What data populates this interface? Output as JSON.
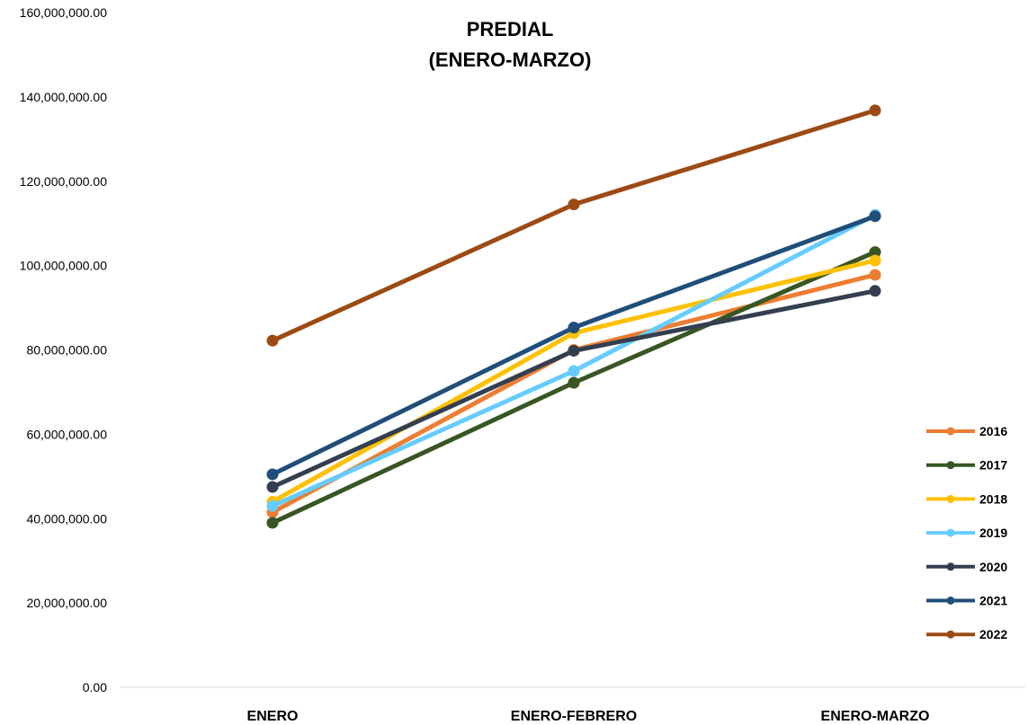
{
  "chart_data": {
    "type": "line",
    "title": "PREDIAL",
    "subtitle": "(ENERO-MARZO)",
    "xlabel": "",
    "ylabel": "",
    "categories": [
      "ENERO",
      "ENERO-FEBRERO",
      "ENERO-MARZO"
    ],
    "ylim": [
      0,
      160000000
    ],
    "yticks": [
      0,
      20000000,
      40000000,
      60000000,
      80000000,
      100000000,
      120000000,
      140000000,
      160000000
    ],
    "ytick_labels": [
      "0.00",
      "20,000,000.00",
      "40,000,000.00",
      "60,000,000.00",
      "80,000,000.00",
      "100,000,000.00",
      "120,000,000.00",
      "140,000,000.00",
      "160,000,000.00"
    ],
    "grid": false,
    "legend_position": "right",
    "series": [
      {
        "name": "2016",
        "color": "#ED7D31",
        "values": [
          41500000,
          80000000,
          97800000
        ]
      },
      {
        "name": "2017",
        "color": "#375623",
        "values": [
          39000000,
          72200000,
          103200000
        ]
      },
      {
        "name": "2018",
        "color": "#FFC000",
        "values": [
          44000000,
          84000000,
          101200000
        ]
      },
      {
        "name": "2019",
        "color": "#66CCFF",
        "values": [
          43000000,
          75000000,
          112000000
        ]
      },
      {
        "name": "2020",
        "color": "#333F50",
        "values": [
          47500000,
          79800000,
          94000000
        ]
      },
      {
        "name": "2021",
        "color": "#1F4E79",
        "values": [
          50500000,
          85300000,
          111700000
        ]
      },
      {
        "name": "2022",
        "color": "#9C4A13",
        "values": [
          82200000,
          114500000,
          136800000
        ]
      }
    ]
  }
}
